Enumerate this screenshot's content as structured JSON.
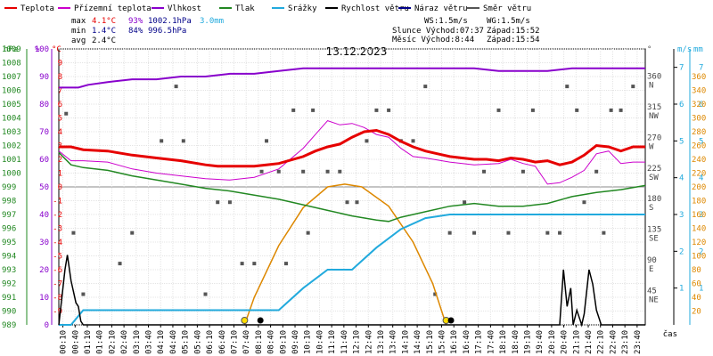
{
  "chart_data": {
    "type": "line",
    "title": "13.12.2023",
    "xlabel": "čas",
    "colors": {
      "temp": "#e60000",
      "dew": "#cc00cc",
      "hum": "#8800cc",
      "press": "#228822",
      "rain": "#22aadd",
      "wind": "#000000",
      "gust": "#000088",
      "dir": "#555555",
      "sun": "#dd8800"
    },
    "legend": [
      {
        "key": "temp",
        "label": "Teplota"
      },
      {
        "key": "dew",
        "label": "Přízemní teplota"
      },
      {
        "key": "hum",
        "label": "Vlhkost"
      },
      {
        "key": "press",
        "label": "Tlak"
      },
      {
        "key": "rain",
        "label": "Srážky"
      },
      {
        "key": "wind",
        "label": "Rychlost větru"
      },
      {
        "key": "gust",
        "label": "Náraz větru"
      },
      {
        "key": "dir",
        "label": "Směr větru"
      }
    ],
    "stats": {
      "max": {
        "label": "max",
        "temp": "4.1°C",
        "hum": "93%",
        "press": "1002.1hPa",
        "rain": "3.0mm"
      },
      "min": {
        "label": "min",
        "temp": "1.4°C",
        "hum": "84%",
        "press": "996.5hPa"
      },
      "avg": {
        "label": "avg",
        "temp": "2.4°C"
      }
    },
    "info": {
      "ws": "WS:1.5m/s",
      "wg": "WG:1.5m/s",
      "sun": "Slunce Východ:07:37",
      "sun_set": "Západ:15:52",
      "moon": "Měsíc  Východ:8:44",
      "moon_set": "Západ:15:54"
    },
    "axes": {
      "hpa": {
        "unit": "hPa",
        "ticks": [
          "989",
          "990",
          "991",
          "992",
          "993",
          "994",
          "995",
          "996",
          "997",
          "998",
          "999",
          "1000",
          "1001",
          "1002",
          "1003",
          "1004",
          "1005",
          "1006",
          "1007",
          "1008",
          "1009"
        ],
        "range": [
          989,
          1009
        ]
      },
      "pct": {
        "unit": "%",
        "ticks": [
          "0",
          "10",
          "20",
          "30",
          "40",
          "50",
          "60",
          "70",
          "80",
          "90",
          "100"
        ],
        "range": [
          0,
          100
        ]
      },
      "temp": {
        "unit": "°C",
        "ticks": [
          "-9",
          "-8",
          "-7",
          "-6",
          "-5",
          "-4",
          "-3",
          "-2",
          "-1",
          "0",
          "1",
          "2",
          "3",
          "4",
          "5",
          "6",
          "7",
          "8",
          "9"
        ],
        "range": [
          -10,
          10
        ]
      },
      "dir": {
        "unit": "°",
        "ticks": [
          {
            "v": 360,
            "deg": "360",
            "lab": "N"
          },
          {
            "v": 315,
            "deg": "315",
            "lab": "NW"
          },
          {
            "v": 270,
            "deg": "270",
            "lab": "W"
          },
          {
            "v": 225,
            "deg": "225",
            "lab": "SW"
          },
          {
            "v": 180,
            "deg": "180",
            "lab": "S"
          },
          {
            "v": 135,
            "deg": "135",
            "lab": "SE"
          },
          {
            "v": 90,
            "deg": "90",
            "lab": "E"
          },
          {
            "v": 45,
            "deg": "45",
            "lab": "NE"
          }
        ],
        "range": [
          0,
          405
        ]
      },
      "ms": {
        "unit": "m/s",
        "ticks": [
          "1",
          "2",
          "3",
          "4",
          "5",
          "6",
          "7"
        ],
        "range": [
          0,
          7.5
        ]
      },
      "mm": {
        "unit": "mm",
        "ticks": [
          "1",
          "2",
          "3",
          "4",
          "5",
          "6",
          "7"
        ],
        "range": [
          0,
          7.5
        ]
      },
      "sun": {
        "ticks": [
          "20",
          "40",
          "60",
          "80",
          "100",
          "120",
          "140",
          "160",
          "180",
          "200",
          "220",
          "240",
          "260",
          "280",
          "300",
          "320",
          "340",
          "360"
        ],
        "range": [
          0,
          400
        ]
      }
    },
    "x_ticks": [
      "00:10",
      "00:40",
      "01:10",
      "01:40",
      "02:10",
      "02:40",
      "03:10",
      "03:40",
      "04:10",
      "04:40",
      "05:10",
      "05:40",
      "06:10",
      "06:40",
      "07:10",
      "07:40",
      "08:10",
      "08:40",
      "09:10",
      "09:40",
      "10:10",
      "10:40",
      "11:10",
      "11:40",
      "12:10",
      "12:40",
      "13:10",
      "13:40",
      "14:10",
      "14:40",
      "15:10",
      "15:40",
      "16:10",
      "16:40",
      "17:10",
      "17:40",
      "18:10",
      "18:40",
      "19:10",
      "19:40",
      "20:10",
      "20:40",
      "21:10",
      "21:40",
      "22:10",
      "22:40",
      "23:10",
      "23:40"
    ],
    "series": {
      "temp": {
        "x": [
          0,
          0.5,
          1,
          2,
          3,
          4,
          5,
          6,
          6.5,
          7,
          8,
          8.5,
          9,
          10,
          10.5,
          11,
          11.5,
          12,
          12.5,
          13,
          13.5,
          14,
          14.5,
          15,
          15.5,
          16,
          16.5,
          17,
          17.5,
          18,
          18.5,
          19,
          19.5,
          20,
          20.5,
          21,
          21.5,
          22,
          22.5,
          23,
          23.5,
          24
        ],
        "y": [
          2.9,
          2.9,
          2.7,
          2.6,
          2.3,
          2.1,
          1.9,
          1.6,
          1.5,
          1.5,
          1.5,
          1.6,
          1.7,
          2.2,
          2.6,
          2.9,
          3.1,
          3.6,
          4.0,
          4.1,
          3.8,
          3.3,
          2.9,
          2.6,
          2.4,
          2.2,
          2.1,
          2.0,
          2.0,
          1.9,
          2.1,
          2.0,
          1.8,
          1.9,
          1.6,
          1.8,
          2.3,
          3.0,
          2.9,
          2.6,
          2.9,
          2.9
        ]
      },
      "dew": {
        "x": [
          0,
          0.5,
          1,
          2,
          3,
          4,
          5,
          6,
          7,
          8,
          9,
          10,
          10.5,
          11,
          11.5,
          12,
          12.5,
          13,
          13.5,
          14,
          14.5,
          15,
          16,
          17,
          18,
          18.5,
          19,
          19.5,
          20,
          20.5,
          21,
          21.5,
          22,
          22.5,
          23,
          23.5,
          24
        ],
        "y": [
          2.6,
          1.9,
          1.9,
          1.8,
          1.3,
          1.0,
          0.8,
          0.6,
          0.5,
          0.7,
          1.3,
          2.8,
          3.8,
          4.8,
          4.5,
          4.6,
          4.3,
          3.8,
          3.6,
          2.8,
          2.2,
          2.1,
          1.8,
          1.6,
          1.7,
          2.0,
          1.7,
          1.5,
          0.2,
          0.3,
          0.7,
          1.2,
          2.4,
          2.6,
          1.7,
          1.8,
          1.8
        ]
      },
      "hum": {
        "x": [
          0,
          0.8,
          1.2,
          2,
          3,
          4,
          5,
          6,
          7,
          8,
          9,
          10,
          11,
          12,
          13,
          14,
          15,
          16,
          17,
          18,
          19,
          20,
          21,
          22,
          23,
          24
        ],
        "y": [
          86,
          86,
          87,
          88,
          89,
          89,
          90,
          90,
          91,
          91,
          92,
          93,
          93,
          93,
          93,
          93,
          93,
          93,
          93,
          92,
          92,
          92,
          93,
          93,
          93,
          93
        ]
      },
      "press": {
        "x": [
          0,
          0.5,
          1,
          2,
          3,
          4,
          5,
          6,
          7,
          8,
          9,
          10,
          11,
          12,
          13,
          13.5,
          14,
          15,
          16,
          17,
          18,
          19,
          20,
          21,
          22,
          23,
          24
        ],
        "y": [
          1001.5,
          1000.6,
          1000.4,
          1000.2,
          999.8,
          999.5,
          999.2,
          998.9,
          998.7,
          998.4,
          998.1,
          997.7,
          997.3,
          996.9,
          996.6,
          996.5,
          996.8,
          997.2,
          997.6,
          997.8,
          997.6,
          997.6,
          997.8,
          998.3,
          998.6,
          998.8,
          999.1
        ]
      },
      "rain": {
        "x": [
          0,
          0.5,
          1,
          8,
          9,
          10,
          11,
          12,
          13,
          14,
          15,
          16,
          20,
          24
        ],
        "y": [
          0,
          0,
          0.4,
          0.4,
          0.4,
          1.0,
          1.5,
          1.5,
          2.1,
          2.6,
          2.9,
          3.0,
          3.0,
          3.0
        ]
      },
      "wind": {
        "x": [
          0,
          0.25,
          0.35,
          0.5,
          0.7,
          0.8,
          0.9,
          1.0,
          20.5,
          20.65,
          20.8,
          20.95,
          21.05,
          21.2,
          21.4,
          21.5,
          21.7,
          21.85,
          22.0,
          22.2,
          24
        ],
        "y": [
          0,
          1.5,
          1.9,
          1.2,
          0.6,
          0.5,
          0.1,
          0,
          0,
          1.5,
          0.5,
          1.0,
          0,
          0.4,
          0,
          0.3,
          1.5,
          1.1,
          0.4,
          0,
          0
        ]
      },
      "sun": {
        "x": [
          7.6,
          8.0,
          9.0,
          10.0,
          11.0,
          11.7,
          12.4,
          13.5,
          14.5,
          15.3,
          15.85
        ],
        "y": [
          0,
          40,
          115,
          170,
          200,
          204,
          200,
          172,
          120,
          60,
          0
        ]
      },
      "dir": {
        "x": [
          0.3,
          0.6,
          1,
          2.5,
          3,
          4.2,
          4.8,
          5.1,
          6,
          6.5,
          7,
          7.5,
          8,
          8.3,
          8.5,
          9,
          9.3,
          9.6,
          10,
          10.2,
          10.4,
          11,
          11.5,
          11.8,
          12.2,
          12.6,
          13,
          13.5,
          14,
          14.5,
          15,
          15.4,
          16,
          16.6,
          17,
          17.4,
          18,
          18.4,
          19,
          19.4,
          20,
          20.5,
          20.8,
          21.2,
          21.5,
          22,
          22.3,
          22.6,
          23,
          23.5
        ],
        "y": [
          310,
          135,
          45,
          90,
          135,
          270,
          350,
          270,
          45,
          180,
          180,
          90,
          90,
          225,
          270,
          225,
          90,
          315,
          225,
          135,
          315,
          225,
          225,
          180,
          180,
          270,
          315,
          315,
          270,
          270,
          350,
          45,
          135,
          180,
          135,
          225,
          315,
          135,
          225,
          315,
          135,
          135,
          350,
          315,
          180,
          225,
          135,
          315,
          315,
          350
        ]
      }
    },
    "markers": [
      {
        "x": 7.6,
        "key": "sun"
      },
      {
        "x": 8.25,
        "key": "moon"
      },
      {
        "x": 15.85,
        "key": "sun"
      },
      {
        "x": 16.05,
        "key": "moon"
      }
    ]
  }
}
